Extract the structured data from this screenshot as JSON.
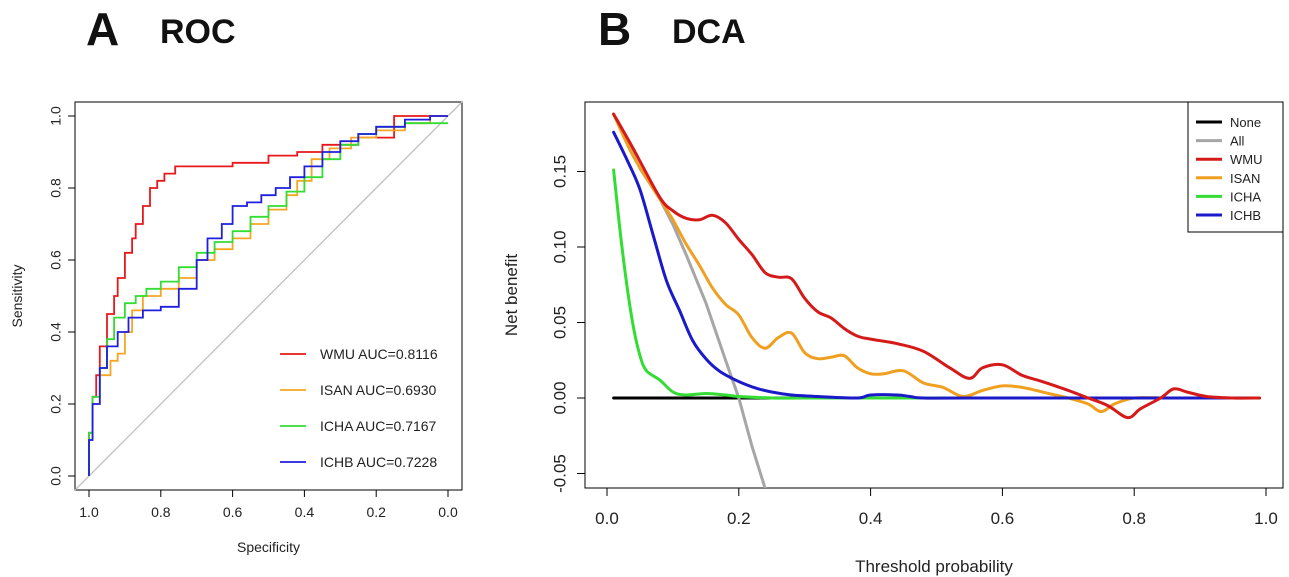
{
  "panels": {
    "a": {
      "letter": "A",
      "title": "ROC"
    },
    "b": {
      "letter": "B",
      "title": "DCA"
    }
  },
  "chart_data": [
    {
      "type": "line",
      "title": "ROC",
      "xlabel": "Specificity",
      "ylabel": "Sensitivity",
      "xlim": [
        1.0,
        0.0
      ],
      "ylim": [
        0.0,
        1.0
      ],
      "x_ticks": [
        "1.0",
        "0.8",
        "0.6",
        "0.4",
        "0.2",
        "0.0"
      ],
      "x_tick_values": [
        1.0,
        0.8,
        0.6,
        0.4,
        0.2,
        0.0
      ],
      "y_ticks": [
        "0.0",
        "0.2",
        "0.4",
        "0.6",
        "0.8",
        "1.0"
      ],
      "y_tick_values": [
        0.0,
        0.2,
        0.4,
        0.6,
        0.8,
        1.0
      ],
      "legend_position": "bottom-right",
      "reference_line": {
        "from": [
          1.0,
          0.0
        ],
        "to": [
          0.0,
          1.0
        ],
        "color": "#c0c0c0"
      },
      "series": [
        {
          "name": "WMU",
          "label": "WMU AUC=0.8116",
          "color": "#e8191b",
          "x": [
            1.0,
            0.99,
            0.98,
            0.97,
            0.95,
            0.93,
            0.92,
            0.9,
            0.88,
            0.87,
            0.85,
            0.83,
            0.81,
            0.79,
            0.76,
            0.7,
            0.6,
            0.5,
            0.42,
            0.35,
            0.25,
            0.15,
            0.1,
            0.05,
            0.0
          ],
          "y": [
            0.0,
            0.12,
            0.22,
            0.28,
            0.36,
            0.45,
            0.5,
            0.55,
            0.62,
            0.66,
            0.7,
            0.75,
            0.8,
            0.82,
            0.84,
            0.86,
            0.86,
            0.87,
            0.89,
            0.9,
            0.92,
            0.94,
            1.0,
            1.0,
            1.0
          ]
        },
        {
          "name": "ISAN",
          "label": "ISAN  AUC=0.6930",
          "color": "#f5a623",
          "x": [
            1.0,
            0.99,
            0.97,
            0.94,
            0.92,
            0.9,
            0.88,
            0.85,
            0.8,
            0.75,
            0.7,
            0.65,
            0.6,
            0.55,
            0.5,
            0.45,
            0.42,
            0.38,
            0.33,
            0.27,
            0.2,
            0.12,
            0.05,
            0.0
          ],
          "y": [
            0.0,
            0.1,
            0.2,
            0.28,
            0.32,
            0.34,
            0.4,
            0.46,
            0.5,
            0.52,
            0.55,
            0.6,
            0.63,
            0.66,
            0.7,
            0.74,
            0.78,
            0.82,
            0.88,
            0.91,
            0.94,
            0.96,
            0.98,
            1.0
          ]
        },
        {
          "name": "ICHA",
          "label": "ICHA  AUC=0.7167",
          "color": "#33dd33",
          "x": [
            1.0,
            0.99,
            0.97,
            0.95,
            0.93,
            0.9,
            0.87,
            0.84,
            0.8,
            0.75,
            0.7,
            0.65,
            0.6,
            0.55,
            0.5,
            0.45,
            0.4,
            0.35,
            0.3,
            0.25,
            0.2,
            0.12,
            0.05,
            0.0
          ],
          "y": [
            0.0,
            0.12,
            0.22,
            0.3,
            0.38,
            0.44,
            0.48,
            0.5,
            0.52,
            0.54,
            0.58,
            0.62,
            0.65,
            0.68,
            0.72,
            0.75,
            0.79,
            0.83,
            0.88,
            0.92,
            0.95,
            0.97,
            0.98,
            0.98
          ]
        },
        {
          "name": "ICHB",
          "label": "ICHB  AUC=0.7228",
          "color": "#1f1fdd",
          "x": [
            1.0,
            0.99,
            0.97,
            0.95,
            0.92,
            0.89,
            0.85,
            0.8,
            0.75,
            0.7,
            0.67,
            0.63,
            0.6,
            0.56,
            0.52,
            0.48,
            0.44,
            0.4,
            0.35,
            0.3,
            0.25,
            0.2,
            0.12,
            0.05,
            0.0
          ],
          "y": [
            0.0,
            0.1,
            0.2,
            0.3,
            0.36,
            0.4,
            0.44,
            0.46,
            0.47,
            0.52,
            0.6,
            0.66,
            0.7,
            0.75,
            0.76,
            0.78,
            0.8,
            0.83,
            0.86,
            0.9,
            0.93,
            0.95,
            0.97,
            0.99,
            1.0
          ]
        }
      ]
    },
    {
      "type": "line",
      "title": "DCA",
      "xlabel": "Threshold probability",
      "ylabel": "Net benefit",
      "xlim": [
        0.0,
        1.0
      ],
      "ylim": [
        -0.065,
        0.19
      ],
      "x_ticks": [
        "0.0",
        "0.2",
        "0.4",
        "0.6",
        "0.8",
        "1.0"
      ],
      "x_tick_values": [
        0.0,
        0.2,
        0.4,
        0.6,
        0.8,
        1.0
      ],
      "y_ticks": [
        "-0.05",
        "0.00",
        "0.05",
        "0.10",
        "0.15"
      ],
      "y_tick_values": [
        -0.05,
        0.0,
        0.05,
        0.1,
        0.15
      ],
      "legend_position": "top-right",
      "series": [
        {
          "name": "None",
          "color": "#000000",
          "x": [
            0.01,
            0.99
          ],
          "y": [
            0.0,
            0.0
          ]
        },
        {
          "name": "All",
          "color": "#a6a6a6",
          "x": [
            0.01,
            0.05,
            0.08,
            0.1,
            0.12,
            0.15,
            0.18,
            0.2,
            0.22,
            0.24
          ],
          "y": [
            0.188,
            0.152,
            0.132,
            0.115,
            0.095,
            0.063,
            0.025,
            0.0,
            -0.032,
            -0.06
          ]
        },
        {
          "name": "WMU",
          "color": "#d51a1a",
          "x": [
            0.01,
            0.04,
            0.08,
            0.1,
            0.12,
            0.14,
            0.16,
            0.18,
            0.2,
            0.22,
            0.24,
            0.26,
            0.28,
            0.3,
            0.32,
            0.34,
            0.36,
            0.38,
            0.4,
            0.44,
            0.48,
            0.52,
            0.55,
            0.57,
            0.6,
            0.63,
            0.66,
            0.7,
            0.73,
            0.76,
            0.79,
            0.81,
            0.84,
            0.86,
            0.88,
            0.91,
            0.95,
            0.99
          ],
          "y": [
            0.188,
            0.165,
            0.133,
            0.124,
            0.119,
            0.118,
            0.121,
            0.116,
            0.105,
            0.095,
            0.083,
            0.08,
            0.079,
            0.066,
            0.057,
            0.053,
            0.046,
            0.041,
            0.039,
            0.036,
            0.031,
            0.02,
            0.013,
            0.02,
            0.022,
            0.015,
            0.011,
            0.005,
            0.0,
            -0.005,
            -0.013,
            -0.007,
            0.0,
            0.006,
            0.004,
            0.001,
            0.0,
            0.0
          ]
        },
        {
          "name": "ISAN",
          "color": "#f0a020",
          "x": [
            0.01,
            0.04,
            0.08,
            0.1,
            0.12,
            0.14,
            0.16,
            0.18,
            0.2,
            0.22,
            0.24,
            0.26,
            0.28,
            0.3,
            0.32,
            0.34,
            0.36,
            0.38,
            0.4,
            0.42,
            0.45,
            0.48,
            0.51,
            0.54,
            0.57,
            0.6,
            0.63,
            0.67,
            0.7,
            0.73,
            0.75,
            0.77,
            0.8,
            0.85,
            0.9,
            0.99
          ],
          "y": [
            0.188,
            0.16,
            0.132,
            0.118,
            0.102,
            0.088,
            0.073,
            0.062,
            0.055,
            0.04,
            0.033,
            0.04,
            0.043,
            0.03,
            0.026,
            0.027,
            0.028,
            0.02,
            0.016,
            0.016,
            0.018,
            0.01,
            0.007,
            0.001,
            0.005,
            0.008,
            0.007,
            0.003,
            0.0,
            -0.004,
            -0.009,
            -0.004,
            0.0,
            0.0,
            0.0,
            0.0
          ]
        },
        {
          "name": "ICHA",
          "color": "#33dd33",
          "x": [
            0.01,
            0.02,
            0.03,
            0.04,
            0.05,
            0.06,
            0.08,
            0.1,
            0.12,
            0.15,
            0.18,
            0.2,
            0.25,
            0.3,
            0.4,
            0.45,
            0.99
          ],
          "y": [
            0.151,
            0.11,
            0.075,
            0.047,
            0.028,
            0.018,
            0.012,
            0.004,
            0.002,
            0.003,
            0.002,
            0.001,
            0.0,
            0.0,
            0.0,
            0.0,
            0.0
          ]
        },
        {
          "name": "ICHB",
          "color": "#1a1ac8",
          "x": [
            0.01,
            0.03,
            0.05,
            0.07,
            0.09,
            0.11,
            0.13,
            0.15,
            0.17,
            0.19,
            0.21,
            0.23,
            0.25,
            0.28,
            0.32,
            0.38,
            0.4,
            0.44,
            0.46,
            0.48,
            0.55,
            0.99
          ],
          "y": [
            0.176,
            0.158,
            0.138,
            0.108,
            0.078,
            0.058,
            0.038,
            0.026,
            0.018,
            0.013,
            0.009,
            0.006,
            0.004,
            0.002,
            0.001,
            0.0,
            0.002,
            0.002,
            0.001,
            0.0,
            0.0,
            0.0
          ]
        }
      ]
    }
  ]
}
